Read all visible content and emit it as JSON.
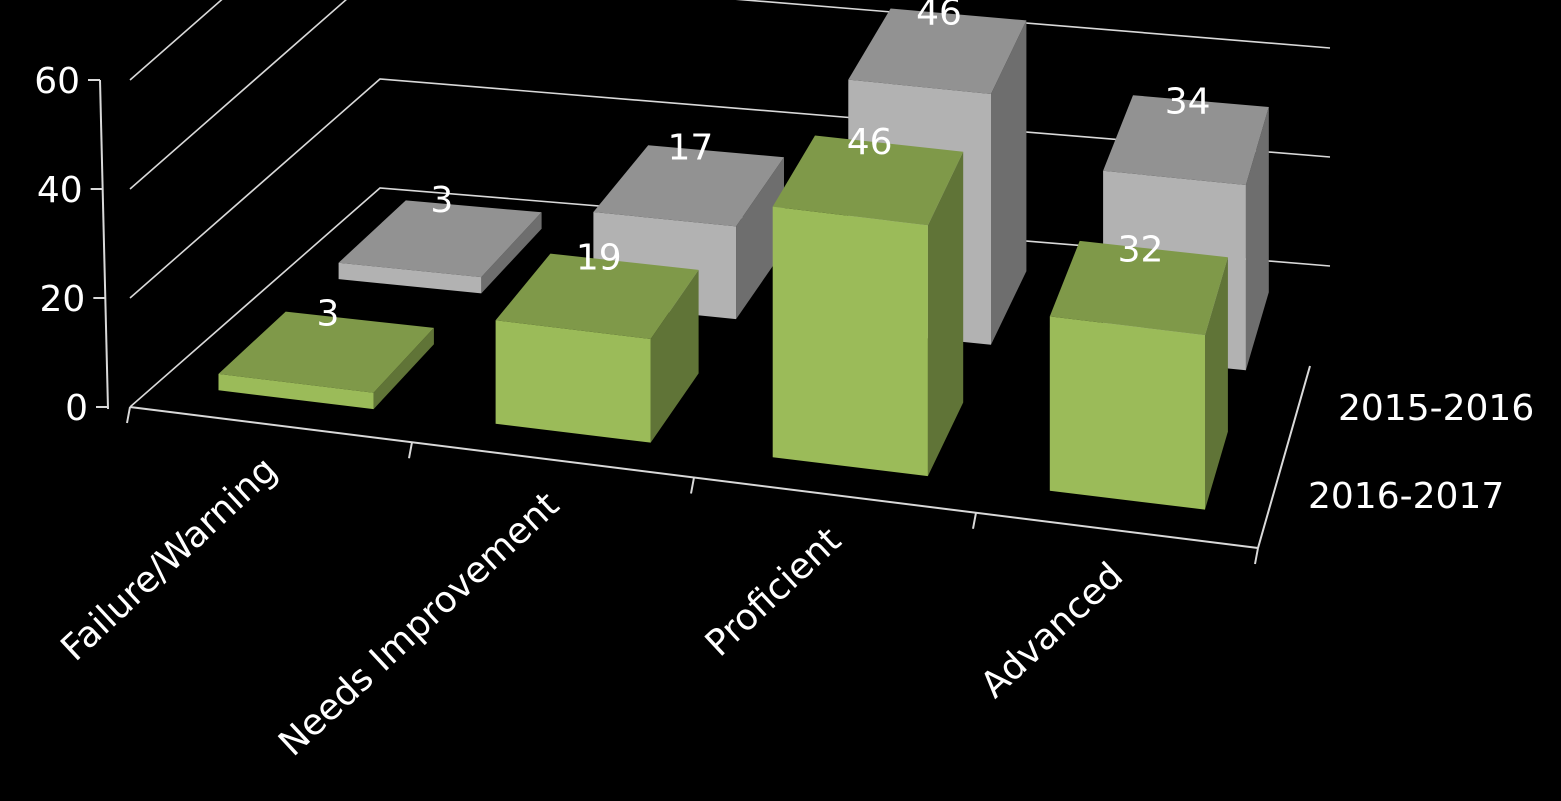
{
  "chart_data": {
    "type": "bar",
    "categories": [
      "Failure/Warning",
      "Needs Improvement",
      "Proficient",
      "Advanced"
    ],
    "series": [
      {
        "name": "2015-2016",
        "values": [
          3,
          17,
          46,
          34
        ],
        "color": "#b2b2b2"
      },
      {
        "name": "2016-2017",
        "values": [
          3,
          19,
          46,
          32
        ],
        "color": "#9bbb59"
      }
    ],
    "ylim": [
      0,
      60
    ],
    "yticks": [
      "0",
      "20",
      "40",
      "60"
    ],
    "grid": true,
    "three_d": true,
    "background": "#000000",
    "text_color": "#ffffff"
  }
}
